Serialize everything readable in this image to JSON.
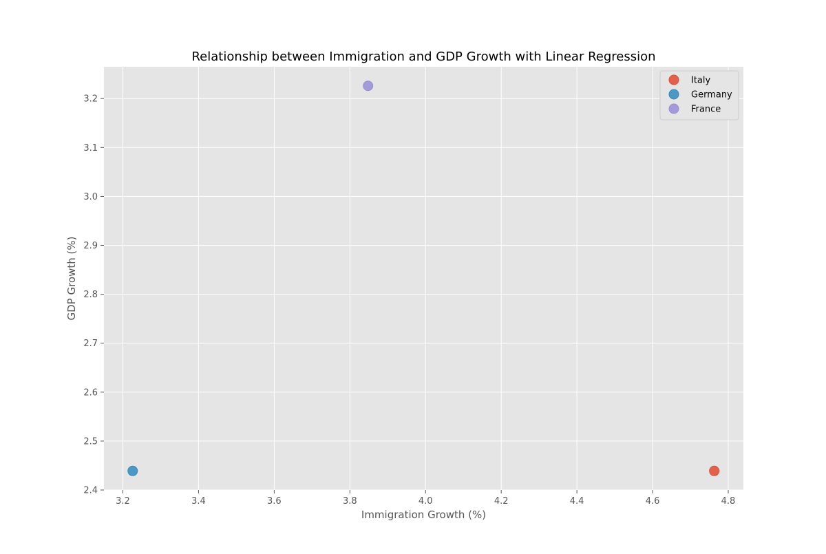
{
  "chart_data": {
    "type": "scatter",
    "title": "Relationship between Immigration and GDP Growth with Linear Regression",
    "xlabel": "Immigration Growth (%)",
    "ylabel": "GDP Growth (%)",
    "xlim": [
      3.15,
      4.84
    ],
    "ylim": [
      2.4,
      3.265
    ],
    "xticks": [
      3.2,
      3.4,
      3.6,
      3.8,
      4.0,
      4.2,
      4.4,
      4.6,
      4.8
    ],
    "xtick_labels": [
      "3.2",
      "3.4",
      "3.6",
      "3.8",
      "4.0",
      "4.2",
      "4.4",
      "4.6",
      "4.8"
    ],
    "yticks": [
      2.4,
      2.5,
      2.6,
      2.7,
      2.8,
      2.9,
      3.0,
      3.1,
      3.2
    ],
    "ytick_labels": [
      "2.4",
      "2.5",
      "2.6",
      "2.7",
      "2.8",
      "2.9",
      "3.0",
      "3.1",
      "3.2"
    ],
    "grid": true,
    "legend_position": "top-right",
    "series": [
      {
        "name": "Italy",
        "color": "#E24A33",
        "points": [
          {
            "x": 4.763,
            "y": 2.439
          }
        ]
      },
      {
        "name": "Germany",
        "color": "#348ABD",
        "points": [
          {
            "x": 3.226,
            "y": 2.439
          }
        ]
      },
      {
        "name": "France",
        "color": "#988ED5",
        "points": [
          {
            "x": 3.848,
            "y": 3.226
          }
        ]
      }
    ]
  }
}
